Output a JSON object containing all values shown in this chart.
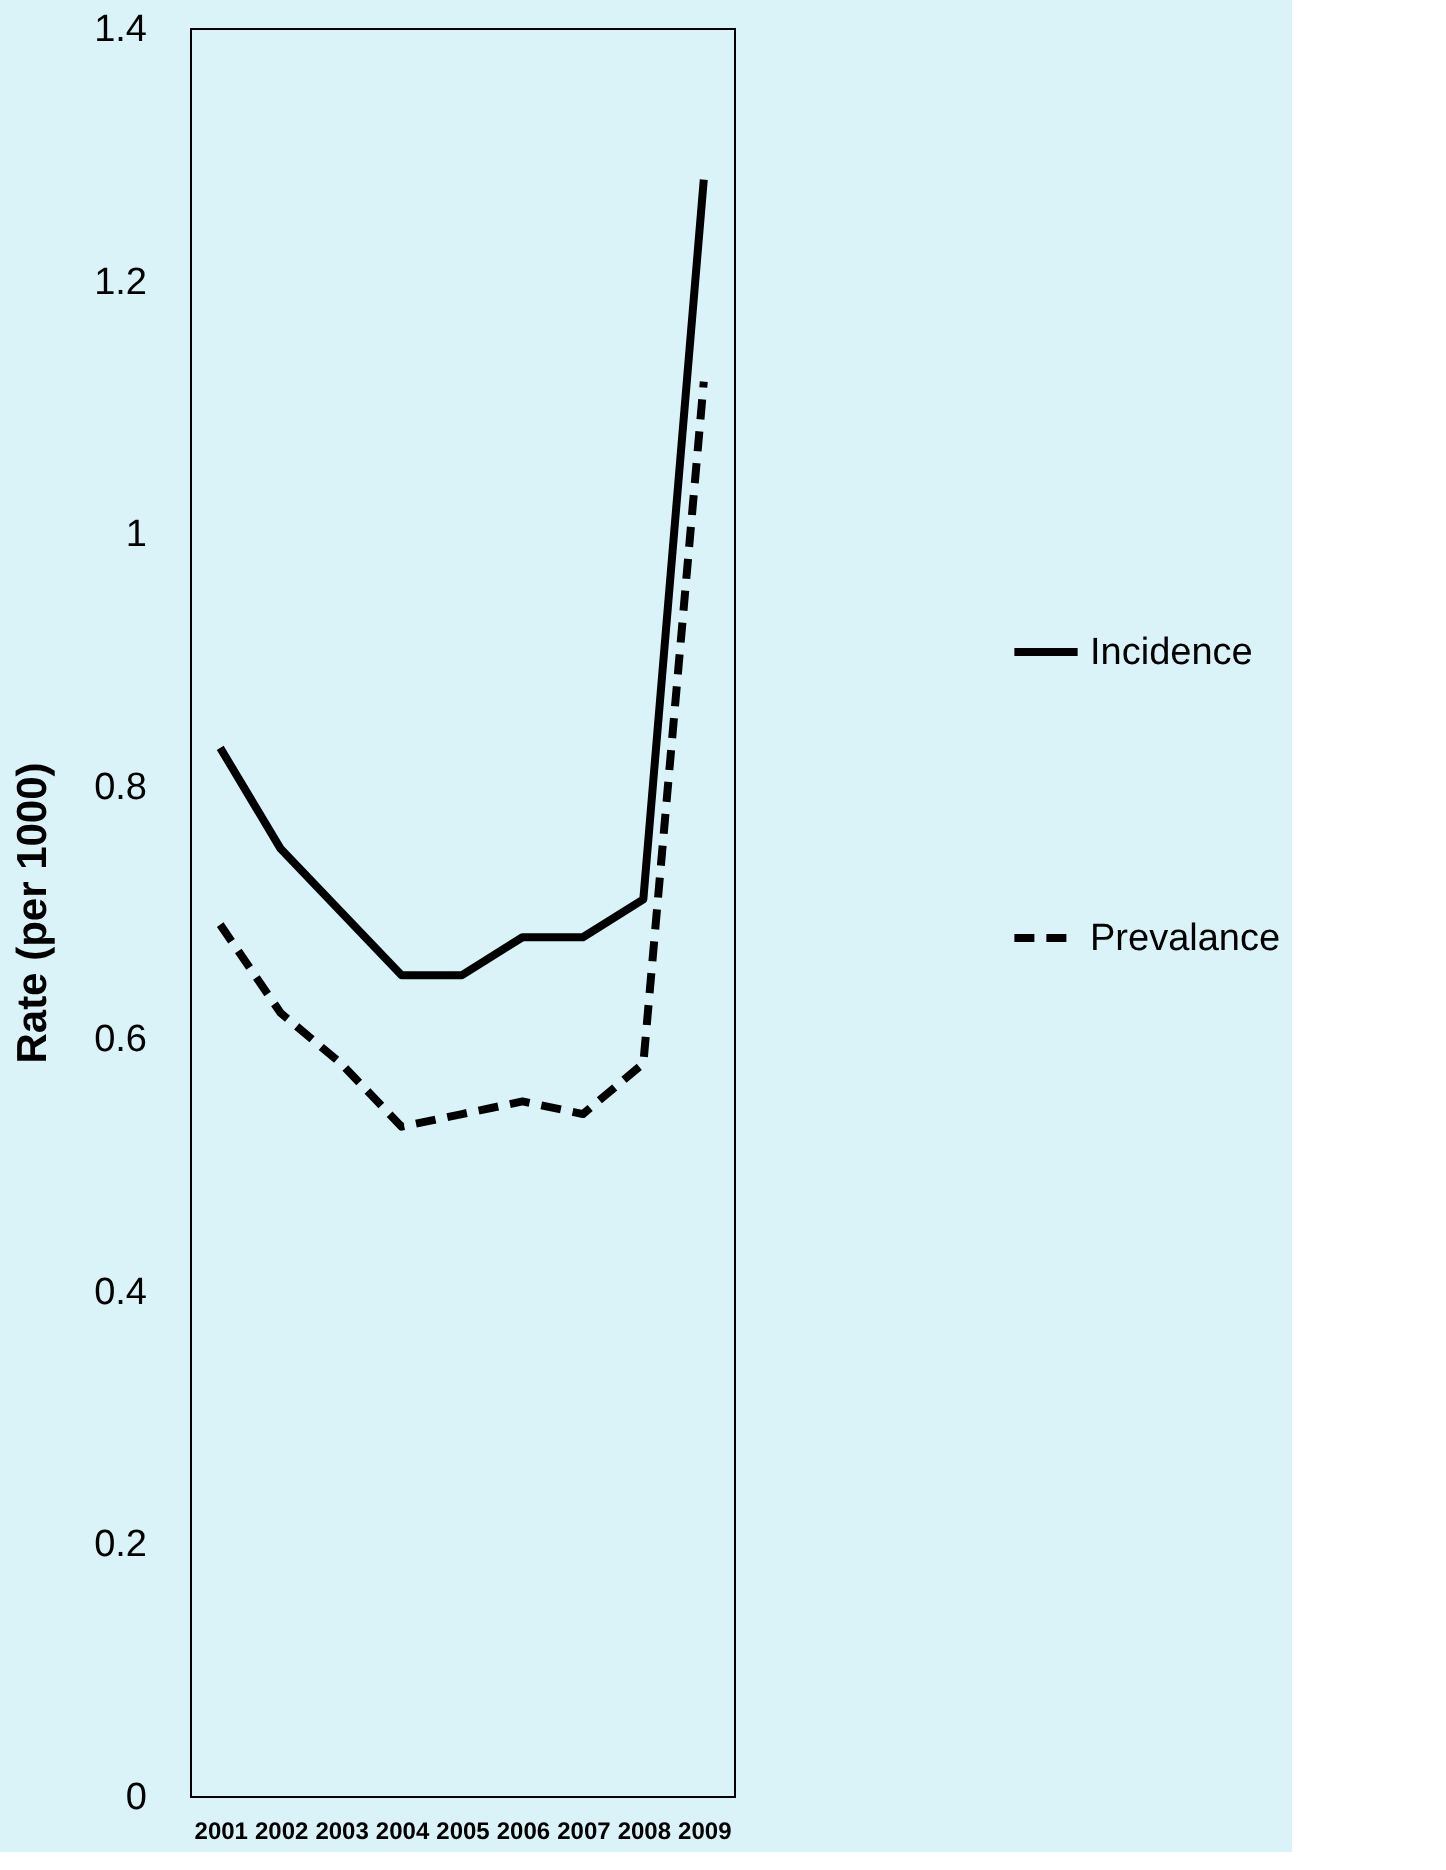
{
  "chart_data": {
    "type": "line",
    "ylabel": "Rate (per 1000)",
    "categories": [
      "2001",
      "2002",
      "2003",
      "2004",
      "2005",
      "2006",
      "2007",
      "2008",
      "2009"
    ],
    "series": [
      {
        "name": "Incidence",
        "color": "#000000",
        "line_style": "solid",
        "values": [
          0.83,
          0.75,
          0.7,
          0.65,
          0.65,
          0.68,
          0.68,
          0.71,
          1.28
        ]
      },
      {
        "name": "Prevalance",
        "color": "#000000",
        "line_style": "dashed",
        "values": [
          0.69,
          0.62,
          0.58,
          0.53,
          0.54,
          0.55,
          0.54,
          0.58,
          1.12
        ]
      }
    ],
    "ylim": [
      0,
      1.4
    ],
    "yticks": [
      0,
      0.2,
      0.4,
      0.6,
      0.8,
      1,
      1.2,
      1.4
    ],
    "grid": false,
    "legend": "right",
    "marker": "none"
  }
}
